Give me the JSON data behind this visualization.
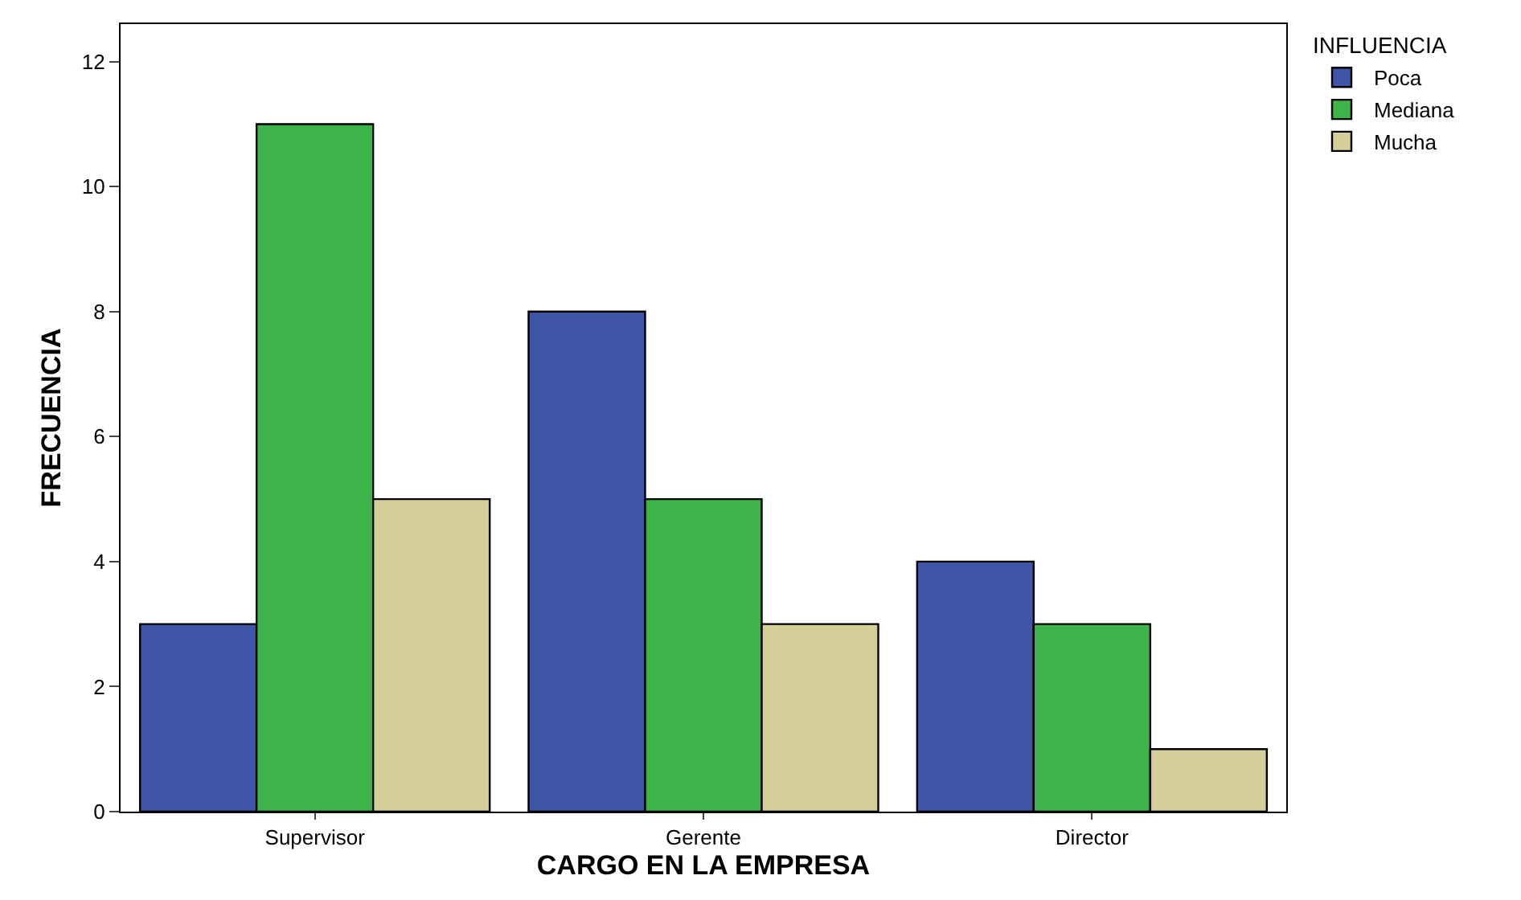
{
  "chart_data": {
    "type": "bar",
    "xlabel": "CARGO EN LA EMPRESA",
    "ylabel": "FRECUENCIA",
    "legend_title": "INFLUENCIA",
    "categories": [
      "Supervisor",
      "Gerente",
      "Director"
    ],
    "series": [
      {
        "name": "Poca",
        "color": "#3f55a8",
        "values": [
          3,
          8,
          4
        ]
      },
      {
        "name": "Mediana",
        "color": "#3cb44a",
        "values": [
          11,
          5,
          3
        ]
      },
      {
        "name": "Mucha",
        "color": "#d4cf98",
        "values": [
          5,
          3,
          1
        ]
      }
    ],
    "ylim": [
      0,
      12.6
    ],
    "yticks": [
      0,
      2,
      4,
      6,
      8,
      10,
      12
    ],
    "legend": "top right"
  }
}
